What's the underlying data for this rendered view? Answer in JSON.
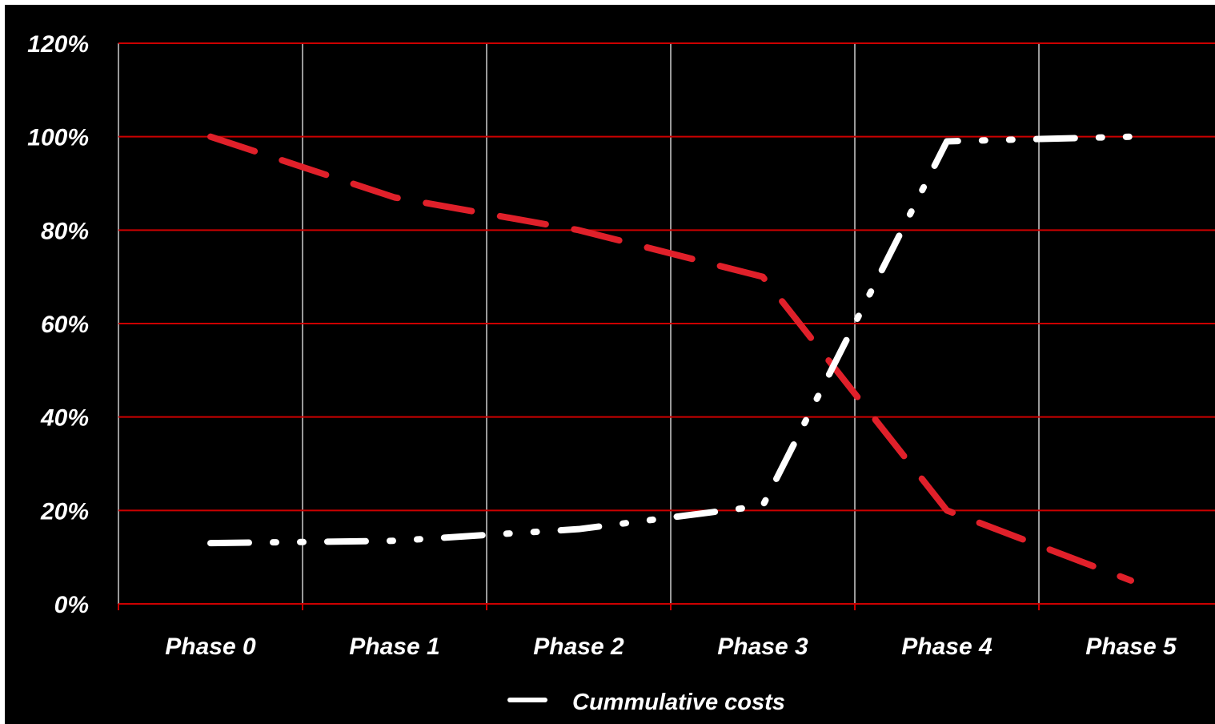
{
  "chart_data": {
    "type": "line",
    "categories": [
      "Phase 0",
      "Phase 1",
      "Phase 2",
      "Phase 3",
      "Phase 4",
      "Phase 5"
    ],
    "y_tick_labels": [
      "0%",
      "20%",
      "40%",
      "60%",
      "80%",
      "100%",
      "120%"
    ],
    "ylim": [
      0,
      120
    ],
    "grid": "on",
    "legend_position": "bottom-center",
    "series": [
      {
        "name": "",
        "color": "#e0202a",
        "style": "dashed",
        "values": [
          100,
          87,
          80,
          70,
          20,
          5
        ]
      },
      {
        "name": "Cummulative costs",
        "color": "#ffffff",
        "style": "dash-dot",
        "values": [
          13,
          13.5,
          16,
          21,
          99,
          100
        ]
      }
    ]
  },
  "colors": {
    "background": "#000000",
    "horizontal_grid": "#cc0000",
    "vertical_grid": "#ffffff",
    "text": "#ffffff"
  }
}
